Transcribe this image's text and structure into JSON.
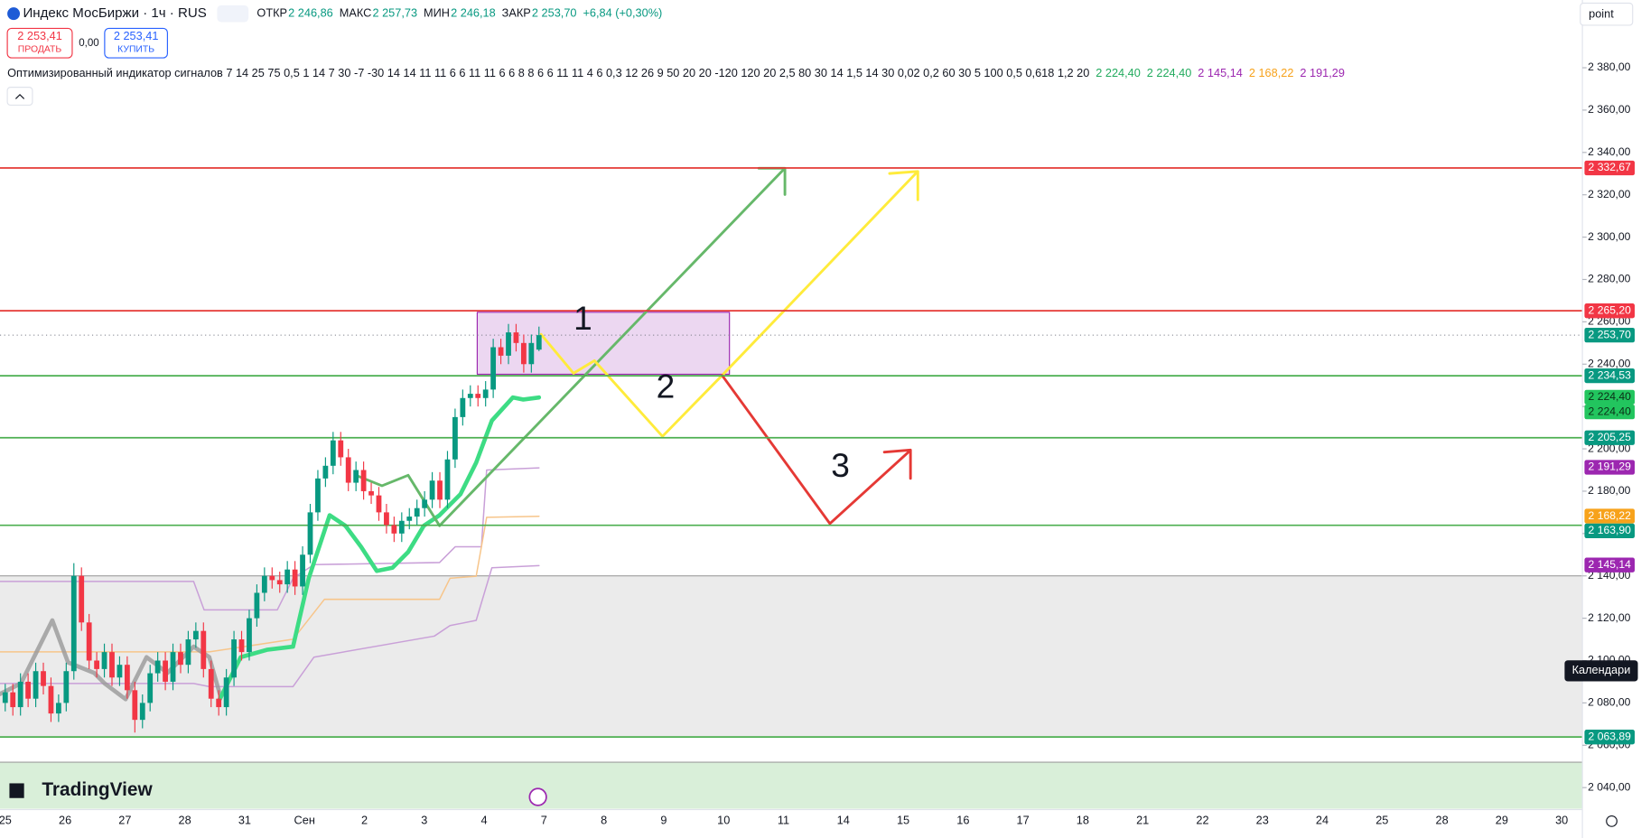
{
  "header": {
    "symbol": "Индекс МосБиржи · 1ч · RUS",
    "ohlc": [
      {
        "label": "ОТКР",
        "value": "2 246,86"
      },
      {
        "label": "МАКС",
        "value": "2 257,73"
      },
      {
        "label": "МИН",
        "value": "2 246,18"
      },
      {
        "label": "ЗАКР",
        "value": "2 253,70"
      }
    ],
    "change": "+6,84 (+0,30%)",
    "sell": {
      "price": "2 253,41",
      "label": "ПРОДАТЬ"
    },
    "spread": "0,00",
    "buy": {
      "price": "2 253,41",
      "label": "КУПИТЬ"
    },
    "scale_mode": "point"
  },
  "indicator": {
    "name": "Оптимизированный индикатор сигналов 7 14 25 75 0,5 1 14 7 30 -7 -30 14 14 11 11 6 6 11 11 6 6 8 8 6 6 11 11 4 6 0,3 12 26 9 50 20 20 -120 120 20 2,5 80 30 14 1,5 14 30 0,02 0,2 60 30 5 100 0,5 0,618 1,2 20",
    "values": [
      {
        "text": "2 224,40",
        "color": "#22ab5e"
      },
      {
        "text": "2 224,40",
        "color": "#22ab5e"
      },
      {
        "text": "2 145,14",
        "color": "#9c27b0"
      },
      {
        "text": "2 168,22",
        "color": "#f7a21b"
      },
      {
        "text": "2 191,29",
        "color": "#9c27b0"
      }
    ]
  },
  "chart_data": {
    "type": "candlestick",
    "x_labels": [
      "25",
      "26",
      "27",
      "28",
      "31",
      "Сен",
      "2",
      "3",
      "4",
      "7",
      "8",
      "9",
      "10",
      "11",
      "14",
      "15",
      "16",
      "17",
      "18",
      "21",
      "22",
      "23",
      "24",
      "25",
      "28",
      "29",
      "30"
    ],
    "ylim": [
      2029.6,
      2412
    ],
    "yticks": [
      {
        "value": 2380,
        "label": "2 380,00"
      },
      {
        "value": 2360,
        "label": "2 360,00"
      },
      {
        "value": 2340,
        "label": "2 340,00"
      },
      {
        "value": 2320,
        "label": "2 320,00"
      },
      {
        "value": 2300,
        "label": "2 300,00"
      },
      {
        "value": 2280,
        "label": "2 280,00"
      },
      {
        "value": 2260,
        "label": "2 260,00"
      },
      {
        "value": 2240,
        "label": "2 240,00"
      },
      {
        "value": 2220,
        "label": "2 220,00"
      },
      {
        "value": 2200,
        "label": "2 200,00"
      },
      {
        "value": 2180,
        "label": "2 180,00"
      },
      {
        "value": 2160,
        "label": "2 160,00"
      },
      {
        "value": 2140,
        "label": "2 140,00"
      },
      {
        "value": 2120,
        "label": "2 120,00"
      },
      {
        "value": 2100,
        "label": "2 100,00"
      },
      {
        "value": 2080,
        "label": "2 080,00"
      },
      {
        "value": 2060,
        "label": "2 060,00"
      },
      {
        "value": 2040,
        "label": "2 040,00"
      }
    ],
    "colors": {
      "up": "#089981",
      "down": "#f23645"
    },
    "open": [
      2080,
      2085,
      2078,
      2090,
      2082,
      2095,
      2088,
      2075,
      2080,
      2095,
      2140,
      2118,
      2100,
      2096,
      2104,
      2092,
      2098,
      2086,
      2072,
      2080,
      2094,
      2100,
      2090,
      2104,
      2098,
      2110,
      2114,
      2096,
      2082,
      2078,
      2092,
      2110,
      2104,
      2120,
      2132,
      2140,
      2138,
      2136,
      2143,
      2135,
      2150,
      2170,
      2186,
      2192,
      2204,
      2196,
      2184,
      2190,
      2180,
      2178,
      2170,
      2164,
      2160,
      2166,
      2168,
      2172,
      2176,
      2185,
      2176,
      2195,
      2215,
      2224,
      2226,
      2224,
      2228,
      2248,
      2244,
      2255,
      2250,
      2240,
      2246.86
    ],
    "high": [
      2089,
      2089,
      2094,
      2094,
      2099,
      2099,
      2092,
      2084,
      2099,
      2146,
      2144,
      2122,
      2104,
      2108,
      2108,
      2102,
      2102,
      2090,
      2084,
      2098,
      2104,
      2104,
      2108,
      2108,
      2114,
      2118,
      2118,
      2100,
      2086,
      2096,
      2114,
      2114,
      2124,
      2136,
      2144,
      2144,
      2142,
      2147,
      2147,
      2154,
      2174,
      2190,
      2196,
      2208,
      2208,
      2200,
      2194,
      2194,
      2184,
      2182,
      2174,
      2168,
      2170,
      2172,
      2176,
      2180,
      2189,
      2189,
      2199,
      2219,
      2228,
      2230,
      2230,
      2232,
      2252,
      2252,
      2259,
      2259,
      2254,
      2254,
      2257.73
    ],
    "low": [
      2076,
      2074,
      2074,
      2078,
      2078,
      2084,
      2071,
      2071,
      2076,
      2091,
      2114,
      2096,
      2092,
      2092,
      2088,
      2088,
      2082,
      2066,
      2068,
      2076,
      2090,
      2086,
      2086,
      2094,
      2094,
      2106,
      2092,
      2078,
      2074,
      2074,
      2088,
      2100,
      2100,
      2116,
      2128,
      2134,
      2132,
      2132,
      2131,
      2131,
      2146,
      2166,
      2182,
      2188,
      2192,
      2180,
      2180,
      2176,
      2174,
      2166,
      2160,
      2156,
      2156,
      2162,
      2164,
      2168,
      2172,
      2172,
      2172,
      2191,
      2211,
      2220,
      2220,
      2220,
      2224,
      2240,
      2240,
      2246,
      2236,
      2236,
      2246.18
    ],
    "close": [
      2085,
      2078,
      2090,
      2082,
      2095,
      2088,
      2075,
      2080,
      2095,
      2140,
      2118,
      2100,
      2096,
      2104,
      2092,
      2098,
      2086,
      2072,
      2080,
      2094,
      2100,
      2090,
      2104,
      2098,
      2110,
      2114,
      2096,
      2082,
      2078,
      2092,
      2110,
      2104,
      2120,
      2132,
      2140,
      2138,
      2136,
      2143,
      2135,
      2150,
      2170,
      2186,
      2192,
      2204,
      2196,
      2184,
      2190,
      2180,
      2178,
      2170,
      2164,
      2160,
      2166,
      2168,
      2172,
      2176,
      2185,
      2176,
      2195,
      2215,
      2224,
      2226,
      2224,
      2228,
      2248,
      2244,
      2255,
      2250,
      2240,
      2250,
      2253.7
    ],
    "levels": [
      {
        "value": 2332.67,
        "label": "2 332,67",
        "color": "#f23645",
        "line": "solid"
      },
      {
        "value": 2265.2,
        "label": "2 265,20",
        "color": "#f23645",
        "line": "solid"
      },
      {
        "value": 2253.7,
        "label": "2 253,70",
        "color": "#089981",
        "line": "dotted"
      },
      {
        "value": 2234.53,
        "label": "2 234,53",
        "color": "#089981",
        "line": "solid"
      },
      {
        "value": 2224.4,
        "label": "2 224,40",
        "color": "#22c55e",
        "line": "none"
      },
      {
        "value": 2224.4,
        "label": "2 224,40",
        "color": "#22c55e",
        "line": "none"
      },
      {
        "value": 2205.25,
        "label": "2 205,25",
        "color": "#089981",
        "line": "solid"
      },
      {
        "value": 2191.29,
        "label": "2 191,29",
        "color": "#9c27b0",
        "line": "none"
      },
      {
        "value": 2168.22,
        "label": "2 168,22",
        "color": "#f7a21b",
        "line": "none"
      },
      {
        "value": 2163.9,
        "label": "2 163,90",
        "color": "#089981",
        "line": "solid"
      },
      {
        "value": 2145.14,
        "label": "2 145,14",
        "color": "#9c27b0",
        "line": "none"
      },
      {
        "value": 2063.89,
        "label": "2 063,89",
        "color": "#089981",
        "line": "solid"
      }
    ],
    "zones": [
      {
        "from": 2140,
        "to": 2063.89,
        "color": "#ebebeb"
      },
      {
        "from": 2052,
        "to": 2030,
        "color": "#d9efd9"
      }
    ],
    "annotations": [
      "1",
      "2",
      "3"
    ],
    "watermark": "TradingView",
    "tooltip": "Календари"
  }
}
